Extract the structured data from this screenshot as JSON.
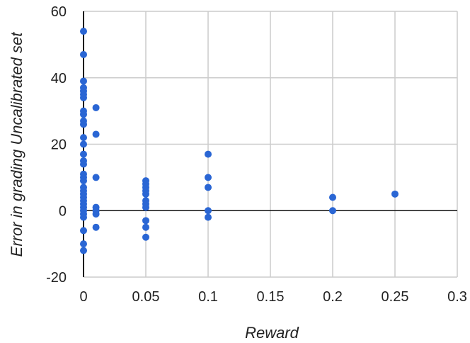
{
  "chart_data": {
    "type": "scatter",
    "title": "",
    "xlabel": "Reward",
    "ylabel": "Error in grading Uncalibrated set",
    "xlim": [
      0,
      0.3
    ],
    "ylim": [
      -20,
      60
    ],
    "x_ticks": [
      "0",
      "0.05",
      "0.1",
      "0.15",
      "0.2",
      "0.25",
      "0.3"
    ],
    "y_ticks": [
      "60",
      "40",
      "20",
      "0",
      "-20"
    ],
    "grid": true,
    "legend": "none",
    "color": "#2a66d4",
    "series": [
      {
        "points": [
          [
            0,
            54
          ],
          [
            0,
            47
          ],
          [
            0,
            39
          ],
          [
            0,
            37
          ],
          [
            0,
            36
          ],
          [
            0,
            35
          ],
          [
            0,
            34
          ],
          [
            0,
            30
          ],
          [
            0,
            29
          ],
          [
            0,
            27
          ],
          [
            0,
            26
          ],
          [
            0,
            22
          ],
          [
            0,
            20
          ],
          [
            0,
            17
          ],
          [
            0,
            15
          ],
          [
            0,
            14
          ],
          [
            0,
            11
          ],
          [
            0,
            10
          ],
          [
            0,
            9
          ],
          [
            0,
            7
          ],
          [
            0,
            6
          ],
          [
            0,
            5
          ],
          [
            0,
            4
          ],
          [
            0,
            3
          ],
          [
            0,
            2
          ],
          [
            0,
            1
          ],
          [
            0,
            0
          ],
          [
            0,
            -1
          ],
          [
            0,
            -2
          ],
          [
            0,
            -6
          ],
          [
            0,
            -10
          ],
          [
            0,
            -12
          ],
          [
            0.01,
            31
          ],
          [
            0.01,
            23
          ],
          [
            0.01,
            10
          ],
          [
            0.01,
            1
          ],
          [
            0.01,
            0
          ],
          [
            0.01,
            -1
          ],
          [
            0.01,
            -5
          ],
          [
            0.05,
            9
          ],
          [
            0.05,
            8
          ],
          [
            0.05,
            7
          ],
          [
            0.05,
            6
          ],
          [
            0.05,
            5
          ],
          [
            0.05,
            3
          ],
          [
            0.05,
            2
          ],
          [
            0.05,
            1
          ],
          [
            0.05,
            -3
          ],
          [
            0.05,
            -5
          ],
          [
            0.05,
            -8
          ],
          [
            0.1,
            17
          ],
          [
            0.1,
            10
          ],
          [
            0.1,
            7
          ],
          [
            0.1,
            0
          ],
          [
            0.1,
            -2
          ],
          [
            0.2,
            4
          ],
          [
            0.2,
            0
          ],
          [
            0.25,
            5
          ]
        ]
      }
    ]
  }
}
